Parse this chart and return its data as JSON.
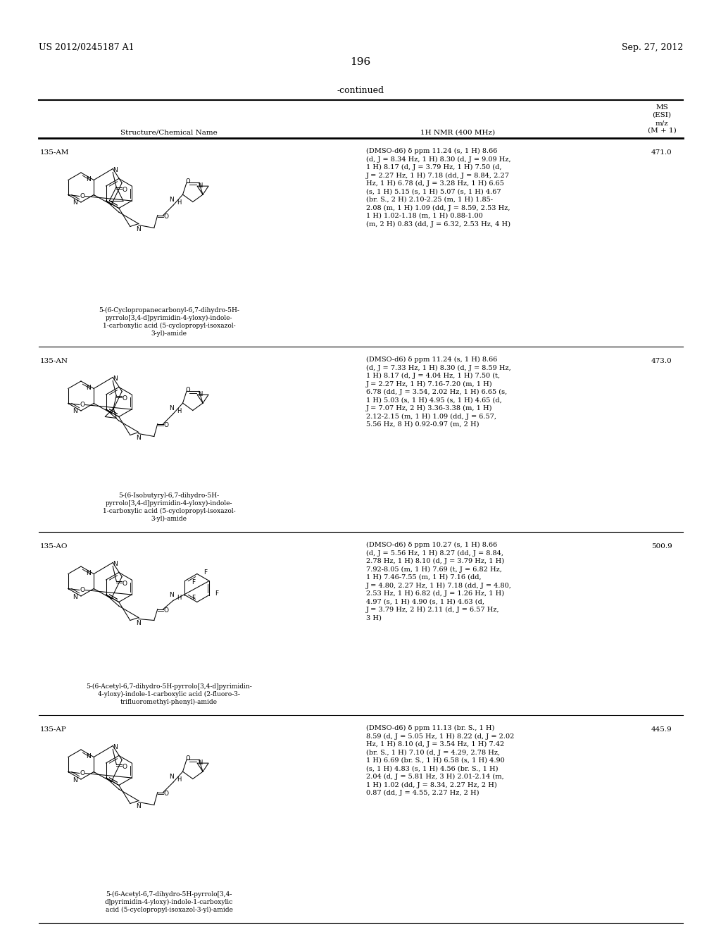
{
  "bg_color": "#ffffff",
  "page_width": 10.24,
  "page_height": 13.2,
  "header_left": "US 2012/0245187 A1",
  "header_right": "Sep. 27, 2012",
  "page_number": "196",
  "continued_label": "-continued",
  "col1_header": "Structure/Chemical Name",
  "col2_header": "1H NMR (400 MHz)",
  "col3_header_lines": [
    "MS",
    "(ESI)",
    "m/z",
    "(M + 1)"
  ],
  "entries": [
    {
      "id": "135-AM",
      "nmr_lines": [
        "(DMSO-d6) δ ppm 11.24 (s, 1 H) 8.66",
        "(d, J = 8.34 Hz, 1 H) 8.30 (d, J = 9.09 Hz,",
        "1 H) 8.17 (d, J = 3.79 Hz, 1 H) 7.50 (d,",
        "J = 2.27 Hz, 1 H) 7.18 (dd, J = 8.84, 2.27",
        "Hz, 1 H) 6.78 (d, J = 3.28 Hz, 1 H) 6.65",
        "(s, 1 H) 5.15 (s, 1 H) 5.07 (s, 1 H) 4.67",
        "(br. S., 2 H) 2.10-2.25 (m, 1 H) 1.85-",
        "2.08 (m, 1 H) 1.09 (dd, J = 8.59, 2.53 Hz,",
        "1 H) 1.02-1.18 (m, 1 H) 0.88-1.00",
        "(m, 2 H) 0.83 (dd, J = 6.32, 2.53 Hz, 4 H)"
      ],
      "ms": "471.0",
      "chem_name_lines": [
        "5-(6-Cyclopropanecarbonyl-6,7-dihydro-5H-",
        "pyrrolo[3,4-d]pyrimidin-4-yloxy)-indole-",
        "1-carboxylic acid (5-cyclopropyl-isoxazol-",
        "3-yl)-amide"
      ],
      "has_cyclopropyl_top": true,
      "has_isoxazole": true,
      "has_cyclopropyl_bottom": true,
      "bottom_group": "cyclopropanecarbonyl"
    },
    {
      "id": "135-AN",
      "nmr_lines": [
        "(DMSO-d6) δ ppm 11.24 (s, 1 H) 8.66",
        "(d, J = 7.33 Hz, 1 H) 8.30 (d, J = 8.59 Hz,",
        "1 H) 8.17 (d, J = 4.04 Hz, 1 H) 7.50 (t,",
        "J = 2.27 Hz, 1 H) 7.16-7.20 (m, 1 H)",
        "6.78 (dd, J = 3.54, 2.02 Hz, 1 H) 6.65 (s,",
        "1 H) 5.03 (s, 1 H) 4.95 (s, 1 H) 4.65 (d,",
        "J = 7.07 Hz, 2 H) 3.36-3.38 (m, 1 H)",
        "2.12-2.15 (m, 1 H) 1.09 (dd, J = 6.57,",
        "5.56 Hz, 8 H) 0.92-0.97 (m, 2 H)"
      ],
      "ms": "473.0",
      "chem_name_lines": [
        "5-(6-Isobutyryl-6,7-dihydro-5H-",
        "pyrrolo[3,4-d]pyrimidin-4-yloxy)-indole-",
        "1-carboxylic acid (5-cyclopropyl-isoxazol-",
        "3-yl)-amide"
      ],
      "has_cyclopropyl_top": true,
      "has_isoxazole": true,
      "has_cyclopropyl_bottom": false,
      "bottom_group": "isobutyryl"
    },
    {
      "id": "135-AO",
      "nmr_lines": [
        "(DMSO-d6) δ ppm 10.27 (s, 1 H) 8.66",
        "(d, J = 5.56 Hz, 1 H) 8.27 (dd, J = 8.84,",
        "2.78 Hz, 1 H) 8.10 (d, J = 3.79 Hz, 1 H)",
        "7.92-8.05 (m, 1 H) 7.69 (t, J = 6.82 Hz,",
        "1 H) 7.46-7.55 (m, 1 H) 7.16 (dd,",
        "J = 4.80, 2.27 Hz, 1 H) 7.18 (dd, J = 4.80,",
        "2.53 Hz, 1 H) 6.82 (d, J = 1.26 Hz, 1 H)",
        "4.97 (s, 1 H) 4.90 (s, 1 H) 4.63 (d,",
        "J = 3.79 Hz, 2 H) 2.11 (d, J = 6.57 Hz,",
        "3 H)"
      ],
      "ms": "500.9",
      "chem_name_lines": [
        "5-(6-Acetyl-6,7-dihydro-5H-pyrrolo[3,4-d]pyrimidin-",
        "4-yloxy)-indole-1-carboxylic acid (2-fluoro-3-",
        "trifluoromethyl-phenyl)-amide"
      ],
      "has_cyclopropyl_top": false,
      "has_isoxazole": false,
      "has_cyclopropyl_bottom": false,
      "bottom_group": "acetyl"
    },
    {
      "id": "135-AP",
      "nmr_lines": [
        "(DMSO-d6) δ ppm 11.13 (br. S., 1 H)",
        "8.59 (d, J = 5.05 Hz, 1 H) 8.22 (d, J = 2.02",
        "Hz, 1 H) 8.10 (d, J = 3.54 Hz, 1 H) 7.42",
        "(br. S., 1 H) 7.10 (d, J = 4.29, 2.78 Hz,",
        "1 H) 6.69 (br. S., 1 H) 6.58 (s, 1 H) 4.90",
        "(s, 1 H) 4.83 (s, 1 H) 4.56 (br. S., 1 H)",
        "2.04 (d, J = 5.81 Hz, 3 H) 2.01-2.14 (m,",
        "1 H) 1.02 (dd, J = 8.34, 2.27 Hz, 2 H)",
        "0.87 (dd, J = 4.55, 2.27 Hz, 2 H)"
      ],
      "ms": "445.9",
      "chem_name_lines": [
        "5-(6-Acetyl-6,7-dihydro-5H-pyrrolo[3,4-",
        "d]pyrimidin-4-yloxy)-indole-1-carboxylic",
        "acid (5-cyclopropyl-isoxazol-3-yl)-amide"
      ],
      "has_cyclopropyl_top": true,
      "has_isoxazole": true,
      "has_cyclopropyl_bottom": false,
      "bottom_group": "acetyl"
    }
  ]
}
